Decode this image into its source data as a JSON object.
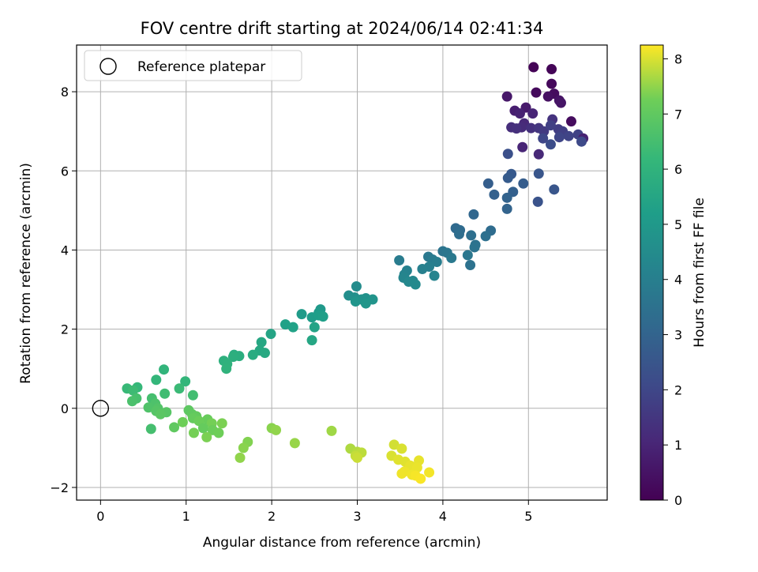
{
  "chart_data": {
    "type": "scatter",
    "title": "FOV centre drift starting at 2024/06/14 02:41:34",
    "xlabel": "Angular distance from reference (arcmin)",
    "ylabel": "Rotation from reference (arcmin)",
    "xlim": [
      -0.28,
      5.92
    ],
    "ylim": [
      -2.32,
      9.18
    ],
    "xticks": [
      0,
      1,
      2,
      3,
      4,
      5
    ],
    "yticks": [
      -2,
      0,
      2,
      4,
      6,
      8
    ],
    "grid": true,
    "legend": {
      "location": "upper-left",
      "entries": [
        "Reference platepar"
      ]
    },
    "reference_point": {
      "x": 0,
      "y": 0
    },
    "colorbar": {
      "label": "Hours from first FF file",
      "colormap": "viridis",
      "range": [
        0,
        8.25
      ],
      "ticks": [
        0,
        1,
        2,
        3,
        4,
        5,
        6,
        7,
        8
      ]
    },
    "series": [
      {
        "points": [
          {
            "x": 5.06,
            "y": 8.62,
            "c": 0.05
          },
          {
            "x": 5.27,
            "y": 8.57,
            "c": 0.1
          },
          {
            "x": 5.27,
            "y": 8.2,
            "c": 0.2
          },
          {
            "x": 5.09,
            "y": 7.98,
            "c": 0.25
          },
          {
            "x": 5.3,
            "y": 7.95,
            "c": 0.3
          },
          {
            "x": 5.23,
            "y": 7.88,
            "c": 0.4
          },
          {
            "x": 4.75,
            "y": 7.88,
            "c": 0.6
          },
          {
            "x": 5.36,
            "y": 7.78,
            "c": 0.5
          },
          {
            "x": 5.38,
            "y": 7.72,
            "c": 0.55
          },
          {
            "x": 4.97,
            "y": 7.6,
            "c": 0.7
          },
          {
            "x": 4.84,
            "y": 7.52,
            "c": 0.8
          },
          {
            "x": 4.9,
            "y": 7.45,
            "c": 0.9
          },
          {
            "x": 5.05,
            "y": 7.45,
            "c": 1.0
          },
          {
            "x": 5.5,
            "y": 7.25,
            "c": 0.3
          },
          {
            "x": 5.28,
            "y": 7.3,
            "c": 1.4
          },
          {
            "x": 4.95,
            "y": 7.2,
            "c": 1.1
          },
          {
            "x": 4.92,
            "y": 7.1,
            "c": 1.2
          },
          {
            "x": 4.8,
            "y": 7.1,
            "c": 1.25
          },
          {
            "x": 4.86,
            "y": 7.07,
            "c": 1.3
          },
          {
            "x": 5.03,
            "y": 7.08,
            "c": 1.35
          },
          {
            "x": 5.12,
            "y": 7.08,
            "c": 1.5
          },
          {
            "x": 5.18,
            "y": 7.0,
            "c": 1.6
          },
          {
            "x": 5.35,
            "y": 7.05,
            "c": 1.7
          },
          {
            "x": 5.4,
            "y": 7.0,
            "c": 1.75
          },
          {
            "x": 5.26,
            "y": 7.15,
            "c": 1.8
          },
          {
            "x": 5.58,
            "y": 6.92,
            "c": 1.85
          },
          {
            "x": 5.47,
            "y": 6.88,
            "c": 1.9
          },
          {
            "x": 5.36,
            "y": 6.85,
            "c": 1.95
          },
          {
            "x": 5.17,
            "y": 6.82,
            "c": 2.0
          },
          {
            "x": 5.64,
            "y": 6.82,
            "c": 0.9
          },
          {
            "x": 5.62,
            "y": 6.74,
            "c": 2.1
          },
          {
            "x": 5.26,
            "y": 6.67,
            "c": 2.2
          },
          {
            "x": 4.93,
            "y": 6.6,
            "c": 1.0
          },
          {
            "x": 5.12,
            "y": 6.42,
            "c": 1.1
          },
          {
            "x": 4.76,
            "y": 6.43,
            "c": 2.3
          },
          {
            "x": 5.12,
            "y": 5.93,
            "c": 2.5
          },
          {
            "x": 4.8,
            "y": 5.92,
            "c": 2.6
          },
          {
            "x": 4.76,
            "y": 5.82,
            "c": 2.7
          },
          {
            "x": 4.53,
            "y": 5.68,
            "c": 2.8
          },
          {
            "x": 4.94,
            "y": 5.68,
            "c": 2.75
          },
          {
            "x": 5.3,
            "y": 5.53,
            "c": 2.5
          },
          {
            "x": 4.82,
            "y": 5.47,
            "c": 2.85
          },
          {
            "x": 4.6,
            "y": 5.4,
            "c": 2.9
          },
          {
            "x": 4.75,
            "y": 5.32,
            "c": 2.95
          },
          {
            "x": 5.11,
            "y": 5.22,
            "c": 2.4
          },
          {
            "x": 4.75,
            "y": 5.04,
            "c": 3.0
          },
          {
            "x": 4.36,
            "y": 4.9,
            "c": 3.1
          },
          {
            "x": 4.15,
            "y": 4.55,
            "c": 3.2
          },
          {
            "x": 4.2,
            "y": 4.5,
            "c": 3.25
          },
          {
            "x": 4.56,
            "y": 4.49,
            "c": 3.3
          },
          {
            "x": 4.19,
            "y": 4.4,
            "c": 3.35
          },
          {
            "x": 4.33,
            "y": 4.37,
            "c": 3.4
          },
          {
            "x": 4.5,
            "y": 4.35,
            "c": 3.45
          },
          {
            "x": 4.38,
            "y": 4.13,
            "c": 3.5
          },
          {
            "x": 4.37,
            "y": 4.07,
            "c": 3.55
          },
          {
            "x": 4.0,
            "y": 3.97,
            "c": 3.6
          },
          {
            "x": 4.05,
            "y": 3.93,
            "c": 3.65
          },
          {
            "x": 4.29,
            "y": 3.87,
            "c": 3.7
          },
          {
            "x": 3.83,
            "y": 3.83,
            "c": 3.75
          },
          {
            "x": 4.1,
            "y": 3.8,
            "c": 3.8
          },
          {
            "x": 3.88,
            "y": 3.76,
            "c": 3.85
          },
          {
            "x": 3.49,
            "y": 3.74,
            "c": 3.9
          },
          {
            "x": 3.93,
            "y": 3.7,
            "c": 3.95
          },
          {
            "x": 4.32,
            "y": 3.62,
            "c": 3.5
          },
          {
            "x": 3.84,
            "y": 3.58,
            "c": 4.0
          },
          {
            "x": 3.76,
            "y": 3.52,
            "c": 4.05
          },
          {
            "x": 3.58,
            "y": 3.48,
            "c": 4.1
          },
          {
            "x": 3.55,
            "y": 3.38,
            "c": 4.15
          },
          {
            "x": 3.9,
            "y": 3.35,
            "c": 4.2
          },
          {
            "x": 3.54,
            "y": 3.3,
            "c": 4.25
          },
          {
            "x": 3.65,
            "y": 3.22,
            "c": 4.3
          },
          {
            "x": 3.6,
            "y": 3.2,
            "c": 4.35
          },
          {
            "x": 3.68,
            "y": 3.13,
            "c": 4.4
          },
          {
            "x": 2.99,
            "y": 3.08,
            "c": 4.5
          },
          {
            "x": 2.9,
            "y": 2.85,
            "c": 4.6
          },
          {
            "x": 2.97,
            "y": 2.8,
            "c": 4.65
          },
          {
            "x": 3.1,
            "y": 2.78,
            "c": 4.7
          },
          {
            "x": 3.05,
            "y": 2.75,
            "c": 4.75
          },
          {
            "x": 3.18,
            "y": 2.75,
            "c": 4.8
          },
          {
            "x": 2.98,
            "y": 2.7,
            "c": 4.85
          },
          {
            "x": 3.1,
            "y": 2.65,
            "c": 4.9
          },
          {
            "x": 2.57,
            "y": 2.5,
            "c": 5.0
          },
          {
            "x": 2.55,
            "y": 2.42,
            "c": 5.05
          },
          {
            "x": 2.35,
            "y": 2.38,
            "c": 5.1
          },
          {
            "x": 2.47,
            "y": 2.3,
            "c": 5.15
          },
          {
            "x": 2.55,
            "y": 2.35,
            "c": 5.2
          },
          {
            "x": 2.6,
            "y": 2.32,
            "c": 5.25
          },
          {
            "x": 2.16,
            "y": 2.12,
            "c": 5.3
          },
          {
            "x": 2.25,
            "y": 2.05,
            "c": 5.35
          },
          {
            "x": 2.5,
            "y": 2.05,
            "c": 5.4
          },
          {
            "x": 1.99,
            "y": 1.88,
            "c": 5.45
          },
          {
            "x": 2.47,
            "y": 1.72,
            "c": 5.5
          },
          {
            "x": 1.88,
            "y": 1.67,
            "c": 5.55
          },
          {
            "x": 1.86,
            "y": 1.46,
            "c": 5.6
          },
          {
            "x": 1.92,
            "y": 1.4,
            "c": 5.65
          },
          {
            "x": 1.78,
            "y": 1.35,
            "c": 5.7
          },
          {
            "x": 1.56,
            "y": 1.35,
            "c": 5.75
          },
          {
            "x": 1.62,
            "y": 1.32,
            "c": 5.8
          },
          {
            "x": 1.55,
            "y": 1.3,
            "c": 5.85
          },
          {
            "x": 1.44,
            "y": 1.2,
            "c": 5.9
          },
          {
            "x": 1.48,
            "y": 1.12,
            "c": 5.95
          },
          {
            "x": 1.47,
            "y": 1.0,
            "c": 6.0
          },
          {
            "x": 0.74,
            "y": 0.98,
            "c": 6.05
          },
          {
            "x": 0.99,
            "y": 0.68,
            "c": 6.1
          },
          {
            "x": 0.65,
            "y": 0.72,
            "c": 6.15
          },
          {
            "x": 0.43,
            "y": 0.53,
            "c": 6.2
          },
          {
            "x": 0.31,
            "y": 0.5,
            "c": 6.25
          },
          {
            "x": 0.92,
            "y": 0.5,
            "c": 6.3
          },
          {
            "x": 0.38,
            "y": 0.45,
            "c": 6.35
          },
          {
            "x": 0.75,
            "y": 0.37,
            "c": 6.4
          },
          {
            "x": 1.08,
            "y": 0.33,
            "c": 6.45
          },
          {
            "x": 0.6,
            "y": 0.25,
            "c": 6.5
          },
          {
            "x": 0.42,
            "y": 0.25,
            "c": 6.55
          },
          {
            "x": 0.37,
            "y": 0.18,
            "c": 6.6
          },
          {
            "x": 0.64,
            "y": 0.12,
            "c": 6.65
          },
          {
            "x": 0.56,
            "y": 0.02,
            "c": 6.7
          },
          {
            "x": 0.67,
            "y": 0.0,
            "c": 6.75
          },
          {
            "x": 0.65,
            "y": -0.07,
            "c": 6.8
          },
          {
            "x": 0.77,
            "y": -0.1,
            "c": 6.85
          },
          {
            "x": 0.7,
            "y": -0.15,
            "c": 6.9
          },
          {
            "x": 1.03,
            "y": -0.05,
            "c": 6.95
          },
          {
            "x": 1.07,
            "y": -0.15,
            "c": 7.0
          },
          {
            "x": 1.12,
            "y": -0.2,
            "c": 7.05
          },
          {
            "x": 1.08,
            "y": -0.25,
            "c": 7.1
          },
          {
            "x": 1.25,
            "y": -0.28,
            "c": 7.15
          },
          {
            "x": 1.15,
            "y": -0.32,
            "c": 7.2
          },
          {
            "x": 0.96,
            "y": -0.35,
            "c": 7.25
          },
          {
            "x": 1.3,
            "y": -0.38,
            "c": 7.3
          },
          {
            "x": 1.42,
            "y": -0.38,
            "c": 7.35
          },
          {
            "x": 0.59,
            "y": -0.52,
            "c": 6.5
          },
          {
            "x": 0.86,
            "y": -0.48,
            "c": 7.0
          },
          {
            "x": 1.2,
            "y": -0.5,
            "c": 7.1
          },
          {
            "x": 1.31,
            "y": -0.55,
            "c": 7.2
          },
          {
            "x": 1.38,
            "y": -0.62,
            "c": 7.25
          },
          {
            "x": 1.09,
            "y": -0.62,
            "c": 7.3
          },
          {
            "x": 1.24,
            "y": -0.73,
            "c": 7.35
          },
          {
            "x": 1.72,
            "y": -0.85,
            "c": 7.4
          },
          {
            "x": 2.0,
            "y": -0.5,
            "c": 7.45
          },
          {
            "x": 2.05,
            "y": -0.55,
            "c": 7.5
          },
          {
            "x": 2.7,
            "y": -0.57,
            "c": 7.6
          },
          {
            "x": 2.27,
            "y": -0.88,
            "c": 7.55
          },
          {
            "x": 1.67,
            "y": -1.0,
            "c": 7.45
          },
          {
            "x": 1.63,
            "y": -1.25,
            "c": 7.5
          },
          {
            "x": 2.92,
            "y": -1.02,
            "c": 7.7
          },
          {
            "x": 3.0,
            "y": -1.1,
            "c": 7.75
          },
          {
            "x": 3.05,
            "y": -1.12,
            "c": 7.8
          },
          {
            "x": 2.98,
            "y": -1.2,
            "c": 7.85
          },
          {
            "x": 3.0,
            "y": -1.25,
            "c": 7.9
          },
          {
            "x": 3.43,
            "y": -0.92,
            "c": 7.95
          },
          {
            "x": 3.52,
            "y": -1.02,
            "c": 8.0
          },
          {
            "x": 3.4,
            "y": -1.2,
            "c": 8.0
          },
          {
            "x": 3.48,
            "y": -1.3,
            "c": 8.05
          },
          {
            "x": 3.56,
            "y": -1.35,
            "c": 8.05
          },
          {
            "x": 3.72,
            "y": -1.32,
            "c": 8.1
          },
          {
            "x": 3.62,
            "y": -1.45,
            "c": 8.1
          },
          {
            "x": 3.7,
            "y": -1.5,
            "c": 8.12
          },
          {
            "x": 3.55,
            "y": -1.6,
            "c": 8.14
          },
          {
            "x": 3.52,
            "y": -1.65,
            "c": 8.15
          },
          {
            "x": 3.64,
            "y": -1.68,
            "c": 8.16
          },
          {
            "x": 3.84,
            "y": -1.62,
            "c": 8.18
          },
          {
            "x": 3.68,
            "y": -1.7,
            "c": 8.2
          },
          {
            "x": 3.74,
            "y": -1.78,
            "c": 8.22
          }
        ]
      }
    ]
  }
}
